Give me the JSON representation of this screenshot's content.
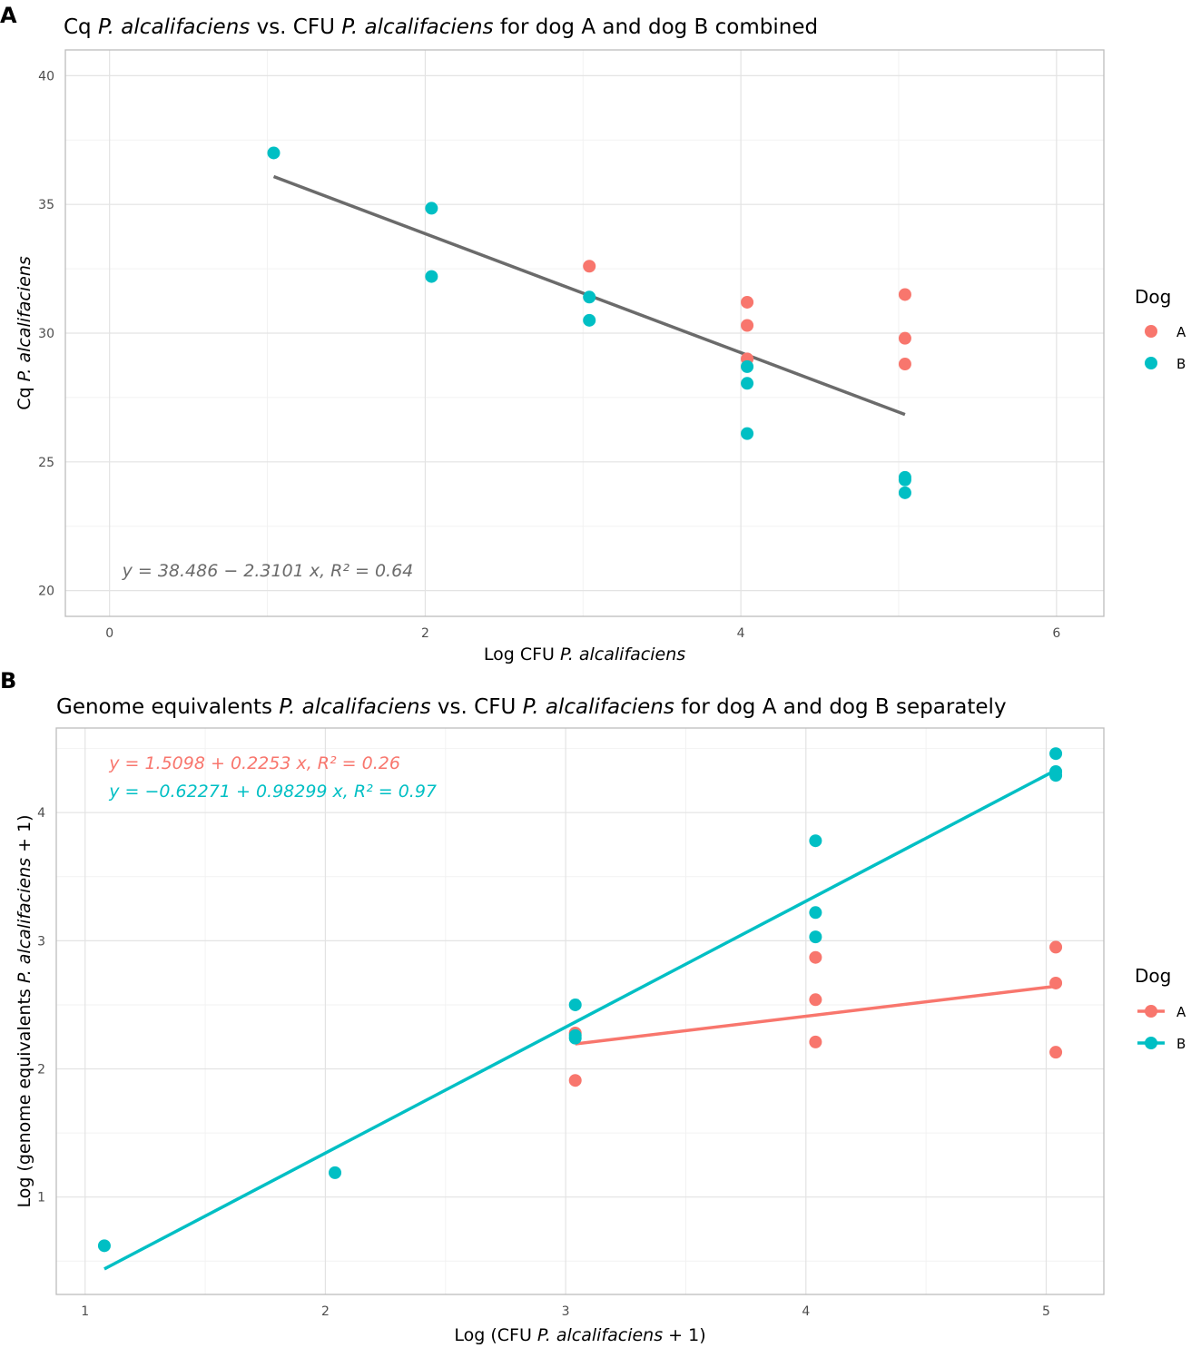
{
  "chart_data": [
    {
      "panel": "A",
      "type": "scatter",
      "title_parts": [
        "Cq ",
        "P. alcalifaciens",
        " vs. CFU ",
        "P. alcalifaciens",
        " for dog A and dog B combined"
      ],
      "xlabel_parts": [
        "Log CFU ",
        "P. alcalifaciens"
      ],
      "ylabel_parts": [
        "Cq ",
        "P. alcalifaciens"
      ],
      "xlim": [
        -0.28,
        6.3
      ],
      "ylim": [
        19.0,
        41.0
      ],
      "xticks": [
        0,
        2,
        4,
        6
      ],
      "yticks": [
        20,
        25,
        30,
        35,
        40
      ],
      "legend": {
        "title": "Dog",
        "position": "right",
        "entries": [
          "A",
          "B"
        ],
        "line": false
      },
      "series": [
        {
          "name": "A",
          "color": "#F8766D",
          "points": [
            [
              3.04,
              32.6
            ],
            [
              4.04,
              31.2
            ],
            [
              4.04,
              30.3
            ],
            [
              4.04,
              29.0
            ],
            [
              5.04,
              31.5
            ],
            [
              5.04,
              29.8
            ],
            [
              5.04,
              28.8
            ]
          ]
        },
        {
          "name": "B",
          "color": "#00BFC4",
          "points": [
            [
              1.04,
              37.0
            ],
            [
              2.04,
              34.85
            ],
            [
              2.04,
              32.2
            ],
            [
              3.04,
              31.4
            ],
            [
              3.04,
              30.5
            ],
            [
              4.04,
              28.7
            ],
            [
              4.04,
              28.05
            ],
            [
              4.04,
              26.1
            ],
            [
              5.04,
              24.4
            ],
            [
              5.04,
              24.3
            ],
            [
              5.04,
              23.8
            ]
          ]
        }
      ],
      "fits": [
        {
          "color": "#6B6B6B",
          "x1": 1.04,
          "y1": 36.08,
          "x2": 5.04,
          "y2": 26.84
        }
      ],
      "equations": [
        {
          "color": "#6B6B6B",
          "text": "y = 38.486 − 2.3101 x, R² = 0.64",
          "x": 0.08,
          "y": 20.55
        }
      ]
    },
    {
      "panel": "B",
      "type": "scatter",
      "title_parts": [
        "Genome equivalents ",
        "P. alcalifaciens",
        " vs. CFU ",
        "P. alcalifaciens",
        " for dog A and dog B separately"
      ],
      "xlabel_parts": [
        "Log (CFU ",
        "P. alcalifaciens",
        " + 1)"
      ],
      "ylabel_parts": [
        "Log (genome equivalents ",
        "P. alcalifaciens",
        " + 1)"
      ],
      "xlim": [
        0.88,
        5.24
      ],
      "ylim": [
        0.24,
        4.66
      ],
      "xticks": [
        1,
        2,
        3,
        4,
        5
      ],
      "yticks": [
        1,
        2,
        3,
        4
      ],
      "legend": {
        "title": "Dog",
        "position": "right",
        "entries": [
          "A",
          "B"
        ],
        "line": true
      },
      "series": [
        {
          "name": "A",
          "color": "#F8766D",
          "points": [
            [
              3.04,
              2.28
            ],
            [
              3.04,
              1.91
            ],
            [
              4.04,
              2.87
            ],
            [
              4.04,
              2.54
            ],
            [
              4.04,
              2.21
            ],
            [
              5.04,
              2.95
            ],
            [
              5.04,
              2.67
            ],
            [
              5.04,
              2.13
            ]
          ]
        },
        {
          "name": "B",
          "color": "#00BFC4",
          "points": [
            [
              1.08,
              0.62
            ],
            [
              2.04,
              1.19
            ],
            [
              3.04,
              2.5
            ],
            [
              3.04,
              2.26
            ],
            [
              3.04,
              2.24
            ],
            [
              4.04,
              3.78
            ],
            [
              4.04,
              3.22
            ],
            [
              4.04,
              3.03
            ],
            [
              5.04,
              4.46
            ],
            [
              5.04,
              4.32
            ],
            [
              5.04,
              4.29
            ]
          ]
        }
      ],
      "fits": [
        {
          "color": "#F8766D",
          "x1": 3.04,
          "y1": 2.195,
          "x2": 5.04,
          "y2": 2.645
        },
        {
          "color": "#00BFC4",
          "x1": 1.08,
          "y1": 0.439,
          "x2": 5.04,
          "y2": 4.331
        }
      ],
      "equations": [
        {
          "color": "#F8766D",
          "text": "y = 1.5098 + 0.2253 x, R² = 0.26",
          "x": 1.1,
          "y": 4.34
        },
        {
          "color": "#00BFC4",
          "text": "y = −0.62271 + 0.98299 x, R² = 0.97",
          "x": 1.1,
          "y": 4.12
        }
      ]
    }
  ]
}
